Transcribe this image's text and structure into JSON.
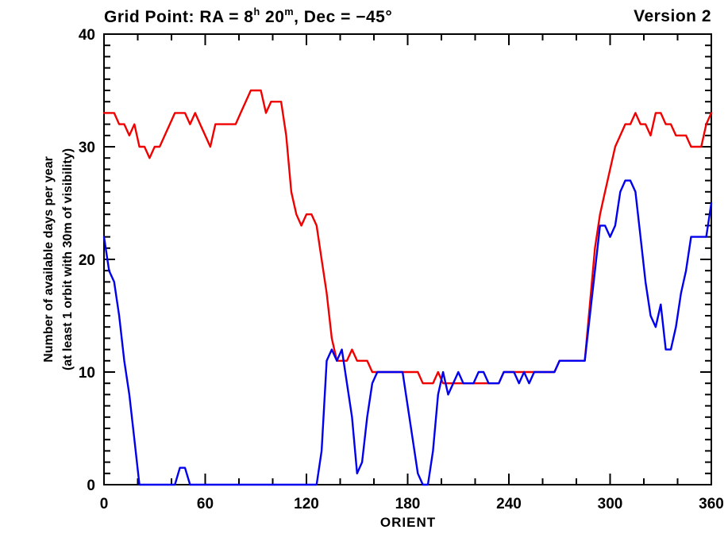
{
  "title": {
    "prefix": "Grid Point: RA = 8",
    "sup_h": "h",
    "mid": " 20",
    "sup_m": "m",
    "suffix": ", Dec = −45°"
  },
  "version_label": "Version 2",
  "chart_data": {
    "type": "line",
    "title": "Grid Point: RA = 8h 20m, Dec = -45°",
    "annotation": "Version 2",
    "xlabel": "ORIENT",
    "ylabel_line1": "Number of available days per year",
    "ylabel_line2": "(at least 1 orbit with 30m of visibility)",
    "xlim": [
      0,
      360
    ],
    "ylim": [
      0,
      40
    ],
    "x_ticks": [
      0,
      60,
      120,
      180,
      240,
      300,
      360
    ],
    "y_ticks": [
      0,
      10,
      20,
      30,
      40
    ],
    "x_minor_step": 20,
    "y_minor_step": 1,
    "grid": false,
    "legend_position": "none",
    "background_color": "#ffffff",
    "axis_color": "#000000",
    "x": [
      0,
      3,
      6,
      9,
      12,
      15,
      18,
      21,
      24,
      27,
      30,
      33,
      36,
      39,
      42,
      45,
      48,
      51,
      54,
      57,
      60,
      63,
      66,
      69,
      72,
      75,
      78,
      81,
      84,
      87,
      90,
      93,
      96,
      99,
      102,
      105,
      108,
      111,
      114,
      117,
      120,
      123,
      126,
      129,
      132,
      135,
      138,
      141,
      144,
      147,
      150,
      153,
      156,
      159,
      162,
      165,
      168,
      171,
      174,
      177,
      180,
      183,
      186,
      189,
      192,
      195,
      198,
      201,
      204,
      207,
      210,
      213,
      216,
      219,
      222,
      225,
      228,
      231,
      234,
      237,
      240,
      243,
      246,
      249,
      252,
      255,
      258,
      261,
      264,
      267,
      270,
      273,
      276,
      279,
      282,
      285,
      288,
      291,
      294,
      297,
      300,
      303,
      306,
      309,
      312,
      315,
      318,
      321,
      324,
      327,
      330,
      333,
      336,
      339,
      342,
      345,
      348,
      351,
      354,
      357,
      360
    ],
    "series": [
      {
        "name": "red_series",
        "color": "#f10000",
        "values": [
          33,
          33,
          33,
          32,
          32,
          31,
          32,
          30,
          30,
          29,
          30,
          30,
          31,
          32,
          33,
          33,
          33,
          32,
          33,
          32,
          31,
          30,
          32,
          32,
          32,
          32,
          32,
          33,
          34,
          35,
          35,
          35,
          33,
          34,
          34,
          34,
          31,
          26,
          24,
          23,
          24,
          24,
          23,
          20,
          17,
          13,
          11,
          11,
          11,
          12,
          11,
          11,
          11,
          10,
          10,
          10,
          10,
          10,
          10,
          10,
          10,
          10,
          10,
          9,
          9,
          9,
          10,
          9,
          9,
          9,
          9,
          9,
          9,
          9,
          9,
          9,
          9,
          9,
          9,
          10,
          10,
          10,
          10,
          10,
          10,
          10,
          10,
          10,
          10,
          10,
          11,
          11,
          11,
          11,
          11,
          11,
          16,
          21,
          24,
          26,
          28,
          30,
          31,
          32,
          32,
          33,
          32,
          32,
          31,
          33,
          33,
          32,
          32,
          31,
          31,
          31,
          30,
          30,
          30,
          32,
          33
        ]
      },
      {
        "name": "blue_series",
        "color": "#0000ee",
        "values": [
          22,
          19,
          18,
          15,
          11,
          8,
          4,
          0,
          0,
          0,
          0,
          0,
          0,
          0,
          0,
          1.5,
          1.5,
          0,
          0,
          0,
          0,
          0,
          0,
          0,
          0,
          0,
          0,
          0,
          0,
          0,
          0,
          0,
          0,
          0,
          0,
          0,
          0,
          0,
          0,
          0,
          0,
          0,
          0,
          3,
          11,
          12,
          11,
          12,
          9,
          6,
          1,
          2,
          6,
          9,
          10,
          10,
          10,
          10,
          10,
          10,
          7,
          4,
          1,
          0,
          0,
          3,
          8,
          10,
          8,
          9,
          10,
          9,
          9,
          9,
          10,
          10,
          9,
          9,
          9,
          10,
          10,
          10,
          9,
          10,
          9,
          10,
          10,
          10,
          10,
          10,
          11,
          11,
          11,
          11,
          11,
          11,
          15,
          19,
          23,
          23,
          22,
          23,
          26,
          27,
          27,
          26,
          22,
          18,
          15,
          14,
          16,
          12,
          12,
          14,
          17,
          19,
          22,
          22,
          22,
          22,
          25
        ]
      }
    ]
  }
}
